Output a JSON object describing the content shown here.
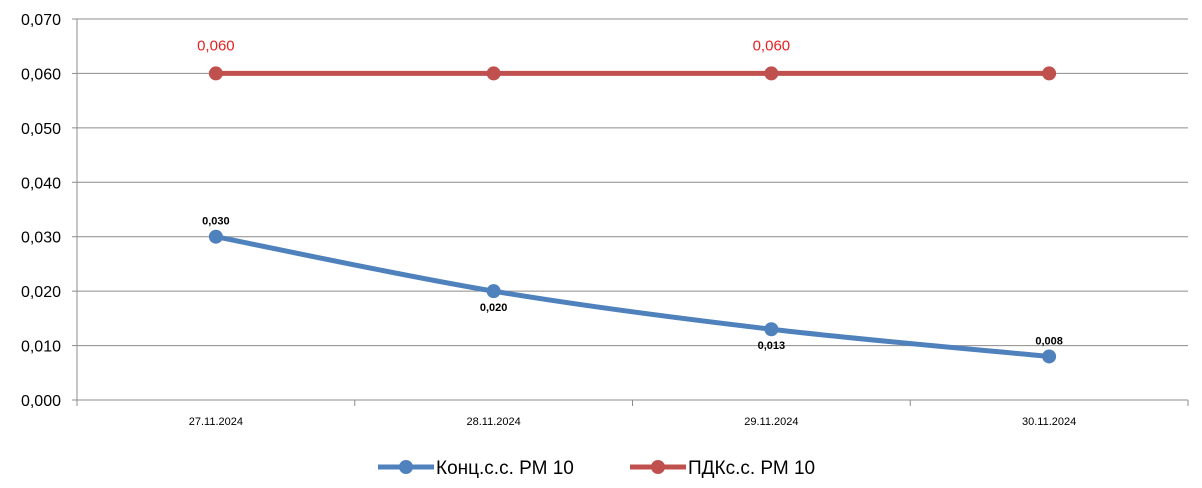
{
  "chart_data": {
    "type": "line",
    "categories": [
      "27.11.2024",
      "28.11.2024",
      "29.11.2024",
      "30.11.2024"
    ],
    "yticks": [
      "0,000",
      "0,010",
      "0,020",
      "0,030",
      "0,040",
      "0,050",
      "0,060",
      "0,070"
    ],
    "ylim": [
      0,
      0.07
    ],
    "grid": true,
    "legend_position": "bottom",
    "series": [
      {
        "name": "Конц.с.с. РМ 10",
        "values": [
          0.03,
          0.02,
          0.013,
          0.008
        ],
        "labels": [
          "0,030",
          "0,020",
          "0,013",
          "0,008"
        ],
        "label_positions": [
          "above",
          "below",
          "below",
          "above"
        ],
        "color": "#4f81bd",
        "smooth": true
      },
      {
        "name": "ПДКс.с. РМ 10",
        "values": [
          0.06,
          0.06,
          0.06,
          0.06
        ],
        "labels": [
          "0,060",
          "",
          "0,060",
          ""
        ],
        "label_positions": [
          "above",
          "above",
          "above",
          "above"
        ],
        "color": "#c0504d",
        "label_color": "#e32222",
        "smooth": false
      }
    ]
  }
}
